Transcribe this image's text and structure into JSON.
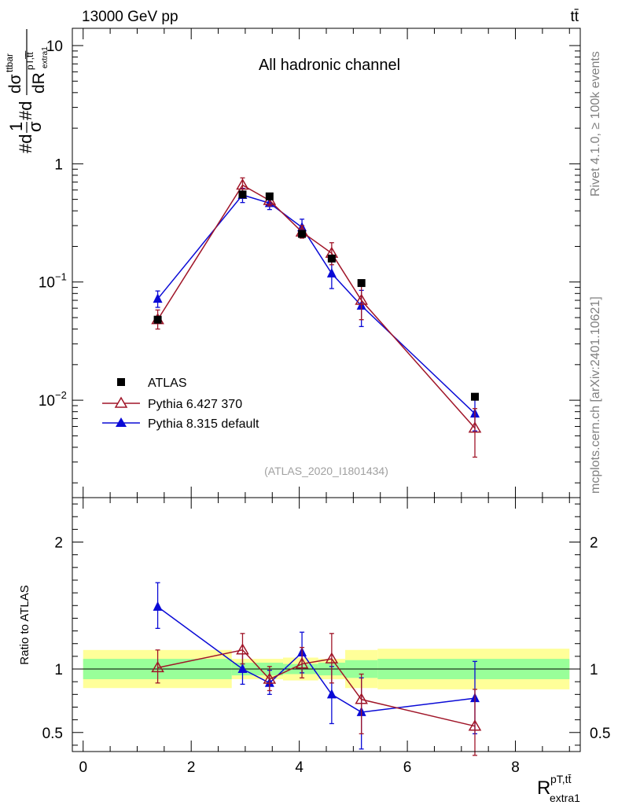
{
  "header": {
    "energy_label": "13000 GeV pp",
    "process_label": "tt̄"
  },
  "side_labels": {
    "rivet": "Rivet 4.1.0, ≥ 100k events",
    "mcplots": "mcplots.cern.ch [arXiv:2401.10621]"
  },
  "chart_data": [
    {
      "type": "scatter",
      "title": "All hadronic channel",
      "analysis": "(ATLAS_2020_I1801434)",
      "ylabel": "#d¹⁄σ#d dσ^{ttbar} / dR^{pT,ttbar}_{extra1}",
      "ylabel_parts": {
        "frac_top": "1",
        "frac_bottom": "σ",
        "pre": "#d",
        "mid": "#d",
        "num": "dσ",
        "num_sup": "ttbar",
        "den": "dR",
        "den_sup": "pT,t̅t̅",
        "den_sub": "extra1"
      },
      "yscale": "log",
      "ylim": [
        0.0015,
        14
      ],
      "xlim": [
        -0.2,
        9.2
      ],
      "y_tick_labels": [
        {
          "value": 10,
          "label": "10"
        },
        {
          "value": 1,
          "label": "1"
        },
        {
          "value": 0.1,
          "label": "10",
          "exp": "−1"
        },
        {
          "value": 0.01,
          "label": "10",
          "exp": "−2"
        }
      ],
      "legend": {
        "position": "bottom-left",
        "entries": [
          "ATLAS",
          "Pythia 6.427 370",
          "Pythia 8.315 default"
        ]
      },
      "series": [
        {
          "name": "ATLAS",
          "color": "#000000",
          "marker": "square",
          "points": [
            {
              "x": 1.38,
              "y": 0.048
            },
            {
              "x": 2.95,
              "y": 0.55
            },
            {
              "x": 3.45,
              "y": 0.53
            },
            {
              "x": 4.05,
              "y": 0.255
            },
            {
              "x": 4.6,
              "y": 0.158
            },
            {
              "x": 5.15,
              "y": 0.098
            },
            {
              "x": 7.25,
              "y": 0.0107
            }
          ]
        },
        {
          "name": "Pythia 6.427 370",
          "color": "#a01528",
          "marker": "open-triangle",
          "points": [
            {
              "x": 1.38,
              "y": 0.048,
              "err": [
                0.04,
                0.058
              ]
            },
            {
              "x": 2.95,
              "y": 0.66,
              "err": [
                0.57,
                0.76
              ]
            },
            {
              "x": 3.45,
              "y": 0.49,
              "err": [
                0.44,
                0.55
              ]
            },
            {
              "x": 4.05,
              "y": 0.265,
              "err": [
                0.235,
                0.3
              ]
            },
            {
              "x": 4.6,
              "y": 0.175,
              "err": [
                0.14,
                0.215
              ]
            },
            {
              "x": 5.15,
              "y": 0.07,
              "err": [
                0.048,
                0.093
              ]
            },
            {
              "x": 7.25,
              "y": 0.0058,
              "err": [
                0.0033,
                0.0085
              ]
            }
          ]
        },
        {
          "name": "Pythia 8.315 default",
          "color": "#0a0ad6",
          "marker": "triangle",
          "points": [
            {
              "x": 1.38,
              "y": 0.072,
              "err": [
                0.061,
                0.084
              ]
            },
            {
              "x": 2.95,
              "y": 0.545,
              "err": [
                0.47,
                0.62
              ]
            },
            {
              "x": 3.45,
              "y": 0.465,
              "err": [
                0.41,
                0.53
              ]
            },
            {
              "x": 4.05,
              "y": 0.29,
              "err": [
                0.245,
                0.34
              ]
            },
            {
              "x": 4.6,
              "y": 0.118,
              "err": [
                0.088,
                0.15
              ]
            },
            {
              "x": 5.15,
              "y": 0.063,
              "err": [
                0.042,
                0.085
              ]
            },
            {
              "x": 7.25,
              "y": 0.0077,
              "err": [
                0.0055,
                0.0102
              ]
            }
          ]
        }
      ]
    },
    {
      "type": "scatter",
      "title": "",
      "ylabel": "Ratio to ATLAS",
      "xlabel": "R^{pT,t̅t̅}_{extra1}",
      "xlabel_parts": {
        "main": "R",
        "sup": "pT,tt̄",
        "sub": "extra1"
      },
      "ylim": [
        0.35,
        2.35
      ],
      "xlim": [
        -0.2,
        9.2
      ],
      "x_ticks": [
        0,
        2,
        4,
        6,
        8
      ],
      "y_ticks": [
        0.5,
        1,
        2
      ],
      "band_colors": {
        "outer": "#ffff99",
        "inner": "#99ff99"
      },
      "bands": [
        {
          "x0": 0.0,
          "x1": 2.75,
          "inner": [
            0.92,
            1.08
          ],
          "outer": [
            0.85,
            1.15
          ]
        },
        {
          "x0": 2.75,
          "x1": 3.7,
          "inner": [
            0.95,
            1.05
          ],
          "outer": [
            0.92,
            1.08
          ]
        },
        {
          "x0": 3.7,
          "x1": 4.35,
          "inner": [
            0.96,
            1.04
          ],
          "outer": [
            0.91,
            1.09
          ]
        },
        {
          "x0": 4.35,
          "x1": 4.85,
          "inner": [
            0.95,
            1.05
          ],
          "outer": [
            0.92,
            1.08
          ]
        },
        {
          "x0": 4.85,
          "x1": 5.45,
          "inner": [
            0.93,
            1.07
          ],
          "outer": [
            0.85,
            1.15
          ]
        },
        {
          "x0": 5.45,
          "x1": 9.0,
          "inner": [
            0.92,
            1.08
          ],
          "outer": [
            0.84,
            1.16
          ]
        }
      ],
      "series": [
        {
          "name": "Pythia 6.427 370",
          "color": "#a01528",
          "marker": "open-triangle",
          "points": [
            {
              "x": 1.38,
              "y": 1.01,
              "err": [
                0.89,
                1.15
              ]
            },
            {
              "x": 2.95,
              "y": 1.15,
              "err": [
                1.04,
                1.28
              ]
            },
            {
              "x": 3.45,
              "y": 0.92,
              "err": [
                0.83,
                1.02
              ]
            },
            {
              "x": 4.05,
              "y": 1.04,
              "err": [
                0.93,
                1.17
              ]
            },
            {
              "x": 4.6,
              "y": 1.08,
              "err": [
                0.89,
                1.28
              ]
            },
            {
              "x": 5.15,
              "y": 0.76,
              "err": [
                0.49,
                0.96
              ]
            },
            {
              "x": 7.25,
              "y": 0.55,
              "err": [
                0.32,
                0.84
              ]
            }
          ]
        },
        {
          "name": "Pythia 8.315 default",
          "color": "#0a0ad6",
          "marker": "triangle",
          "points": [
            {
              "x": 1.38,
              "y": 1.49,
              "err": [
                1.32,
                1.68
              ]
            },
            {
              "x": 2.95,
              "y": 1.0,
              "err": [
                0.88,
                1.12
              ]
            },
            {
              "x": 3.45,
              "y": 0.89,
              "err": [
                0.8,
                0.99
              ]
            },
            {
              "x": 4.05,
              "y": 1.13,
              "err": [
                0.97,
                1.29
              ]
            },
            {
              "x": 4.6,
              "y": 0.8,
              "err": [
                0.57,
                1.02
              ]
            },
            {
              "x": 5.15,
              "y": 0.66,
              "err": [
                0.37,
                0.93
              ]
            },
            {
              "x": 7.25,
              "y": 0.77,
              "err": [
                0.49,
                1.06
              ]
            }
          ]
        }
      ]
    }
  ]
}
